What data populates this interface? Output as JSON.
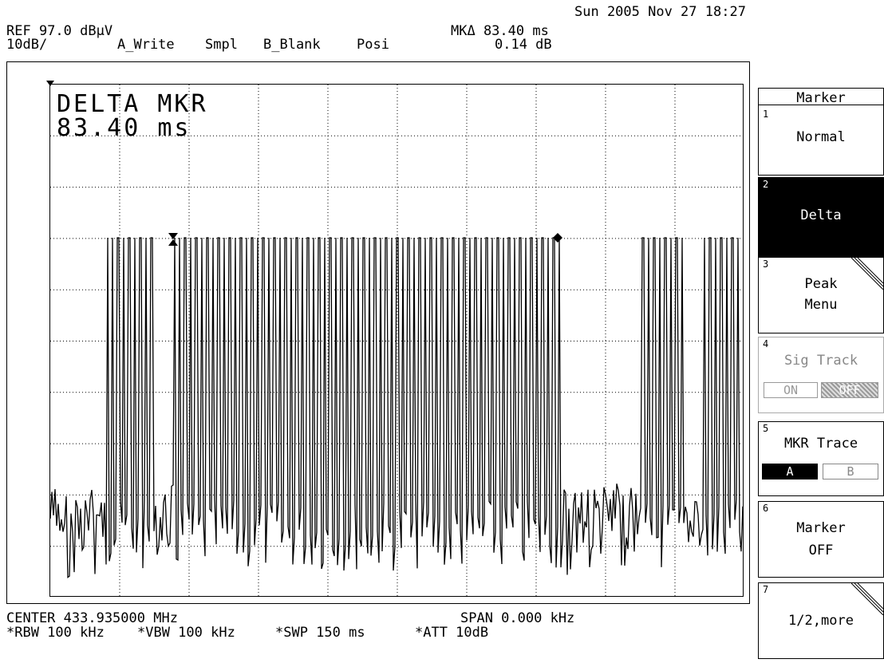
{
  "header": {
    "datetime": "Sun 2005 Nov 27 18:27",
    "ref_level": "REF 97.0 dBµV",
    "scale": "10dB/",
    "trace_a": "A_Write",
    "detector": "Smpl",
    "trace_b": "B_Blank",
    "posi": "Posi",
    "marker_delta_time": "MKΔ 83.40 ms",
    "marker_delta_level": "0.14 dB"
  },
  "graticule": {
    "marker_title": "DELTA MKR",
    "marker_value": "83.40 ms"
  },
  "footer": {
    "center": "CENTER 433.935000 MHz",
    "span": "SPAN 0.000 kHz",
    "rbw": "*RBW 100 kHz",
    "vbw": "*VBW 100 kHz",
    "swp": "*SWP 150 ms",
    "att": "*ATT 10dB"
  },
  "softkeys": {
    "title": "Marker",
    "items": [
      {
        "num": "1",
        "line1": "Normal",
        "line2": ""
      },
      {
        "num": "2",
        "line1": "Delta",
        "line2": ""
      },
      {
        "num": "3",
        "line1": "Peak",
        "line2": "Menu"
      },
      {
        "num": "4",
        "line1": "Sig Track",
        "line2": ""
      },
      {
        "num": "5",
        "line1": "MKR Trace",
        "line2": ""
      },
      {
        "num": "6",
        "line1": "Marker",
        "line2": "OFF"
      },
      {
        "num": "7",
        "line1": "1/2,more",
        "line2": ""
      }
    ],
    "sig_track_on": "ON",
    "sig_track_off": "OFF",
    "trace_a": "A",
    "trace_b": "B"
  }
}
